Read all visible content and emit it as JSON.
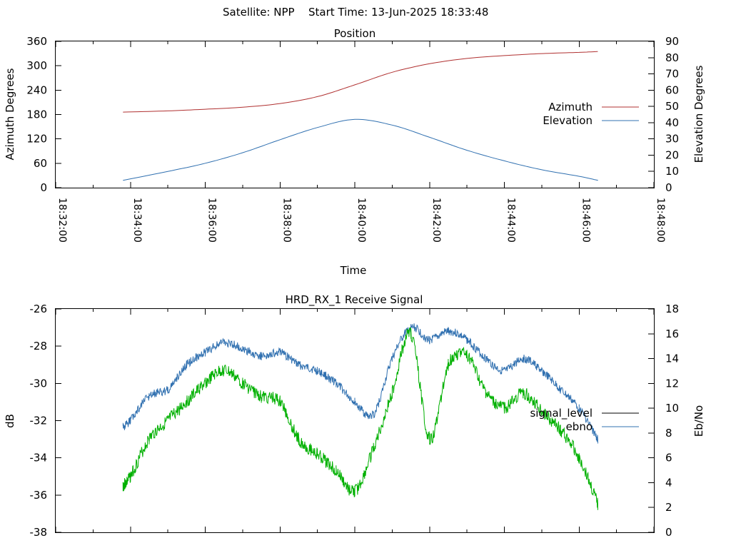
{
  "header": {
    "satellite_label": "Satellite: NPP",
    "start_time_label": "Start Time: 13-Jun-2025 18:33:48"
  },
  "chart_data": [
    {
      "type": "line",
      "title": "Position",
      "xlabel": "Time",
      "ylabel": "Azimuth Degrees",
      "y2label": "Elevation Degrees",
      "xticks": [
        "18:32:00",
        "18:34:00",
        "18:36:00",
        "18:38:00",
        "18:40:00",
        "18:42:00",
        "18:44:00",
        "18:46:00",
        "18:48:00"
      ],
      "xlim": [
        "18:32:00",
        "18:48:00"
      ],
      "ylim": [
        0,
        360
      ],
      "y2lim": [
        0,
        90
      ],
      "yticks": [
        "0",
        "60",
        "120",
        "180",
        "240",
        "300",
        "360"
      ],
      "y2ticks": [
        "0",
        "10",
        "20",
        "30",
        "40",
        "50",
        "60",
        "70",
        "80",
        "90"
      ],
      "legend_position": "right",
      "series": [
        {
          "name": "Azimuth",
          "axis": "y1",
          "color": "#b03030",
          "x": [
            "18:33:48",
            "18:35:00",
            "18:36:00",
            "18:37:00",
            "18:38:00",
            "18:39:00",
            "18:40:00",
            "18:41:00",
            "18:42:00",
            "18:43:00",
            "18:44:00",
            "18:45:00",
            "18:46:00",
            "18:46:30"
          ],
          "values": [
            186,
            189,
            193,
            198,
            207,
            224,
            253,
            284,
            305,
            318,
            325,
            330,
            333,
            335
          ]
        },
        {
          "name": "Elevation",
          "axis": "y2",
          "color": "#3070b0",
          "x": [
            "18:33:48",
            "18:35:00",
            "18:36:00",
            "18:37:00",
            "18:38:00",
            "18:39:00",
            "18:40:00",
            "18:41:00",
            "18:42:00",
            "18:43:00",
            "18:44:00",
            "18:45:00",
            "18:46:00",
            "18:46:30"
          ],
          "values": [
            4.5,
            10,
            15,
            21.5,
            29.5,
            37,
            42,
            38.5,
            31,
            23,
            16.5,
            11,
            7,
            4.5
          ]
        }
      ]
    },
    {
      "type": "line",
      "title": "HRD_RX_1 Receive Signal",
      "xlabel": "",
      "ylabel": "dB",
      "y2label": "Eb/No",
      "xlim": [
        "18:32:00",
        "18:48:00"
      ],
      "ylim": [
        -38,
        -26
      ],
      "y2lim": [
        0,
        18
      ],
      "yticks": [
        "-38",
        "-36",
        "-34",
        "-32",
        "-30",
        "-28",
        "-26"
      ],
      "y2ticks": [
        "0",
        "2",
        "4",
        "6",
        "8",
        "10",
        "12",
        "14",
        "16",
        "18"
      ],
      "legend_position": "right",
      "series": [
        {
          "name": "signal_level",
          "axis": "y1",
          "color": "#000000",
          "x": [],
          "values": []
        },
        {
          "name": "ebno",
          "axis": "y2",
          "color": "#3070b0",
          "x": [
            "18:33:48",
            "18:34:00",
            "18:34:30",
            "18:35:00",
            "18:35:30",
            "18:36:00",
            "18:36:30",
            "18:37:00",
            "18:37:30",
            "18:38:00",
            "18:38:30",
            "18:39:00",
            "18:39:30",
            "18:40:00",
            "18:40:30",
            "18:41:00",
            "18:41:30",
            "18:42:00",
            "18:42:30",
            "18:43:00",
            "18:43:30",
            "18:44:00",
            "18:44:30",
            "18:45:00",
            "18:45:30",
            "18:46:00",
            "18:46:30"
          ],
          "values": [
            8.5,
            9,
            11,
            11.5,
            13.5,
            14.5,
            15.3,
            14.8,
            14.2,
            14.5,
            13.5,
            13,
            12,
            10.5,
            9.5,
            14,
            16.5,
            15.5,
            16.2,
            15.5,
            14,
            13,
            14,
            13,
            11.5,
            10,
            7.5
          ]
        },
        {
          "name": "",
          "axis": "y1",
          "color": "#00b000",
          "x": [
            "18:33:48",
            "18:34:00",
            "18:34:30",
            "18:35:00",
            "18:35:30",
            "18:36:00",
            "18:36:30",
            "18:37:00",
            "18:37:30",
            "18:38:00",
            "18:38:30",
            "18:39:00",
            "18:39:30",
            "18:40:00",
            "18:40:30",
            "18:41:00",
            "18:41:30",
            "18:42:00",
            "18:42:30",
            "18:43:00",
            "18:43:30",
            "18:44:00",
            "18:44:30",
            "18:45:00",
            "18:45:30",
            "18:46:00",
            "18:46:30"
          ],
          "values": [
            -35.5,
            -35,
            -33,
            -32,
            -31,
            -30,
            -29.3,
            -30,
            -30.7,
            -31,
            -33,
            -33.8,
            -34.7,
            -35.8,
            -33.5,
            -30.5,
            -27.3,
            -33,
            -29,
            -28.5,
            -30.5,
            -31.3,
            -30.5,
            -31.5,
            -32.5,
            -34,
            -36.5
          ]
        }
      ]
    }
  ]
}
